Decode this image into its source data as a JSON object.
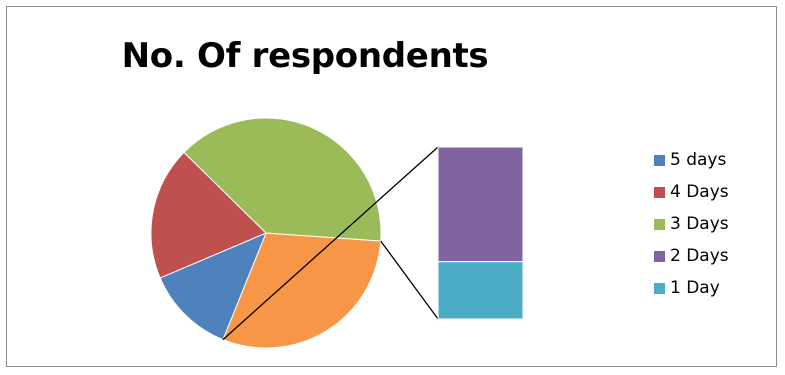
{
  "chart_data": {
    "type": "pie",
    "subtype": "pie-of-pie (stacked bar breakout)",
    "title": "No. Of respondents",
    "categories": [
      "5 days",
      "4 Days",
      "3 Days",
      "2 Days",
      "1 Day"
    ],
    "values": [
      10,
      15,
      31,
      16,
      8
    ],
    "breakout_categories": [
      "2 Days",
      "1 Day"
    ],
    "legend_position": "right",
    "colors": {
      "5 days": "#4f81bd",
      "4 Days": "#c0504d",
      "3 Days": "#9bbb59",
      "2 Days": "#8064a2",
      "1 Day": "#4bacc6",
      "Other": "#f79646"
    }
  }
}
